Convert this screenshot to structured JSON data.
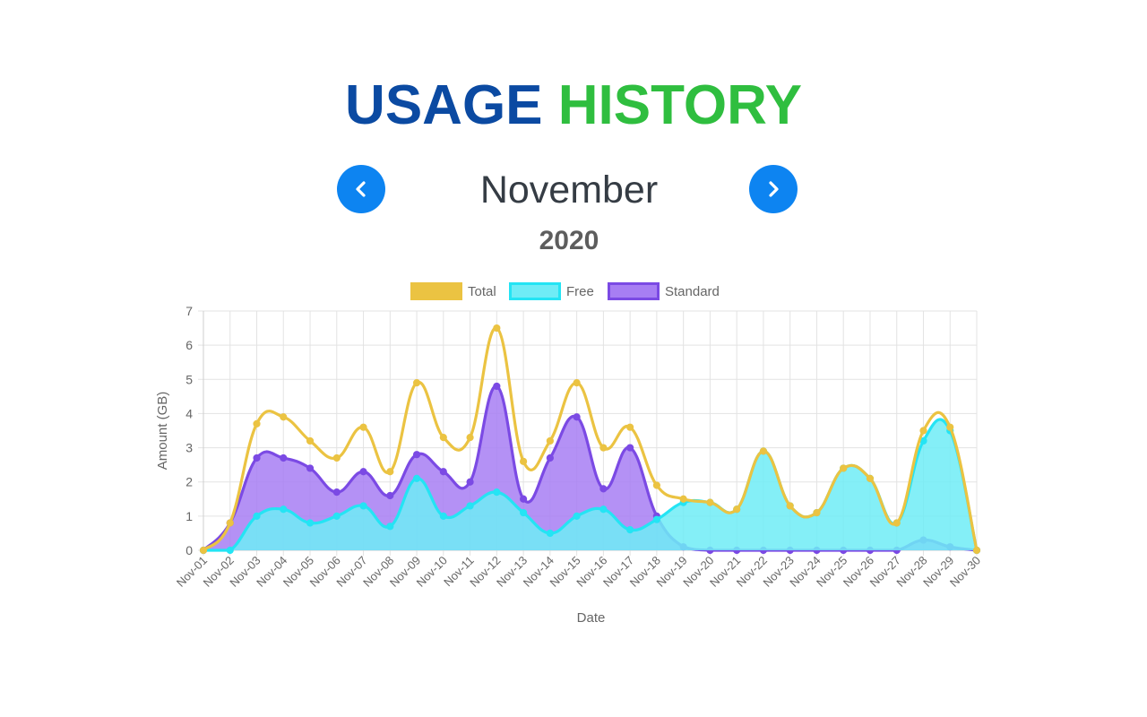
{
  "header": {
    "title_word1": "USAGE",
    "title_word2": "HISTORY",
    "title_color1": "#0b4aa2",
    "title_color2": "#2fbe3f"
  },
  "period": {
    "month": "November",
    "year": "2020",
    "prev_icon": "chevron-left-icon",
    "next_icon": "chevron-right-icon",
    "button_color": "#0d84f1"
  },
  "chart_data": {
    "type": "area",
    "xlabel": "Date",
    "ylabel": "Amount (GB)",
    "ylim": [
      0,
      7
    ],
    "yticks": [
      0,
      1,
      2,
      3,
      4,
      5,
      6,
      7
    ],
    "grid": true,
    "legend_position": "top",
    "categories": [
      "Nov-01",
      "Nov-02",
      "Nov-03",
      "Nov-04",
      "Nov-05",
      "Nov-06",
      "Nov-07",
      "Nov-08",
      "Nov-09",
      "Nov-10",
      "Nov-11",
      "Nov-12",
      "Nov-13",
      "Nov-14",
      "Nov-15",
      "Nov-16",
      "Nov-17",
      "Nov-18",
      "Nov-19",
      "Nov-20",
      "Nov-21",
      "Nov-22",
      "Nov-23",
      "Nov-24",
      "Nov-25",
      "Nov-26",
      "Nov-27",
      "Nov-28",
      "Nov-29",
      "Nov-30"
    ],
    "series": [
      {
        "name": "Total",
        "color": "#ebc342",
        "fill": "none",
        "values": [
          0,
          0.8,
          3.7,
          3.9,
          3.2,
          2.7,
          3.6,
          2.3,
          4.9,
          3.3,
          3.3,
          6.5,
          2.6,
          3.2,
          4.9,
          3.0,
          3.6,
          1.9,
          1.5,
          1.4,
          1.2,
          2.9,
          1.3,
          1.1,
          2.4,
          2.1,
          0.8,
          3.5,
          3.6,
          0
        ]
      },
      {
        "name": "Free",
        "color": "#24e4f4",
        "fill": "#6fecf6",
        "values": [
          0,
          0,
          1.0,
          1.2,
          0.8,
          1.0,
          1.3,
          0.7,
          2.1,
          1.0,
          1.3,
          1.7,
          1.1,
          0.5,
          1.0,
          1.2,
          0.6,
          0.9,
          1.4,
          1.4,
          1.2,
          2.9,
          1.3,
          1.1,
          2.4,
          2.1,
          0.8,
          3.2,
          3.5,
          0
        ]
      },
      {
        "name": "Standard",
        "color": "#7b4ae4",
        "fill": "#a77ef3",
        "values": [
          0,
          0.8,
          2.7,
          2.7,
          2.4,
          1.7,
          2.3,
          1.6,
          2.8,
          2.3,
          2.0,
          4.8,
          1.5,
          2.7,
          3.9,
          1.8,
          3.0,
          1.0,
          0.1,
          0,
          0,
          0,
          0,
          0,
          0,
          0,
          0,
          0.3,
          0.1,
          0
        ]
      }
    ]
  }
}
